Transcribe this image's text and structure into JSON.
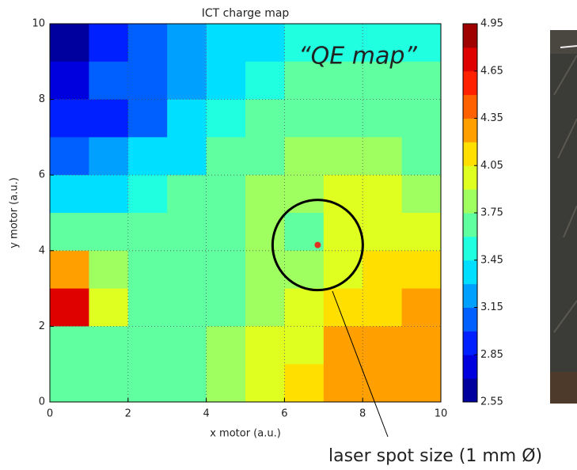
{
  "chart_data": {
    "type": "contour",
    "title": "ICT charge map",
    "xlabel": "x motor  (a.u.)",
    "ylabel": "y motor  (a.u.)",
    "x": [
      0.5,
      1.5,
      2.5,
      3.5,
      4.5,
      5.5,
      6.5,
      7.5,
      8.5,
      9.5
    ],
    "y": [
      9.5,
      8.5,
      7.5,
      6.5,
      5.5,
      4.5,
      3.5,
      2.5,
      1.5,
      0.5
    ],
    "z": [
      [
        2.6,
        2.9,
        3.1,
        3.2,
        3.3,
        3.4,
        3.5,
        3.5,
        3.5,
        3.5
      ],
      [
        2.8,
        3.0,
        3.1,
        3.2,
        3.4,
        3.5,
        3.6,
        3.6,
        3.6,
        3.6
      ],
      [
        2.9,
        2.9,
        3.1,
        3.3,
        3.5,
        3.6,
        3.7,
        3.7,
        3.7,
        3.6
      ],
      [
        3.1,
        3.2,
        3.3,
        3.4,
        3.6,
        3.7,
        3.8,
        3.8,
        3.8,
        3.7
      ],
      [
        3.3,
        3.4,
        3.5,
        3.6,
        3.6,
        3.8,
        3.8,
        3.9,
        3.9,
        3.8
      ],
      [
        3.6,
        3.6,
        3.6,
        3.6,
        3.7,
        3.8,
        3.6,
        3.9,
        4.0,
        4.0
      ],
      [
        4.3,
        3.8,
        3.6,
        3.7,
        3.7,
        3.8,
        3.8,
        4.0,
        4.1,
        4.15
      ],
      [
        4.7,
        3.9,
        3.6,
        3.6,
        3.7,
        3.8,
        3.9,
        4.1,
        4.15,
        4.2
      ],
      [
        3.7,
        3.6,
        3.6,
        3.6,
        3.8,
        3.9,
        4.0,
        4.2,
        4.3,
        4.3
      ],
      [
        3.6,
        3.6,
        3.6,
        3.7,
        3.8,
        3.9,
        4.1,
        4.3,
        4.3,
        4.3
      ]
    ],
    "levels": [
      2.55,
      2.7,
      2.85,
      3.0,
      3.15,
      3.3,
      3.45,
      3.6,
      3.75,
      3.9,
      4.05,
      4.2,
      4.35,
      4.5,
      4.65,
      4.8,
      4.95
    ],
    "colors": [
      "#00009f",
      "#0000df",
      "#0020ff",
      "#0060ff",
      "#00a0ff",
      "#00dfff",
      "#20ffdf",
      "#60ffa0",
      "#a0ff60",
      "#dfff20",
      "#ffdf00",
      "#ffa000",
      "#ff6000",
      "#ff2000",
      "#df0000",
      "#9f0000"
    ],
    "xlim": [
      0,
      10
    ],
    "ylim": [
      0,
      10
    ],
    "xticks": [
      0,
      2,
      4,
      6,
      8,
      10
    ],
    "yticks": [
      0,
      2,
      4,
      6,
      8,
      10
    ],
    "colorbar_ticks": [
      2.55,
      2.85,
      3.15,
      3.45,
      3.75,
      4.05,
      4.35,
      4.65,
      4.95
    ],
    "grid": true,
    "marker": {
      "x": 6.85,
      "y": 4.15,
      "color": "#e03020"
    },
    "annotation_inner": "“QE map”",
    "annotation_outer": "laser spot size (1 mm Ø)"
  }
}
